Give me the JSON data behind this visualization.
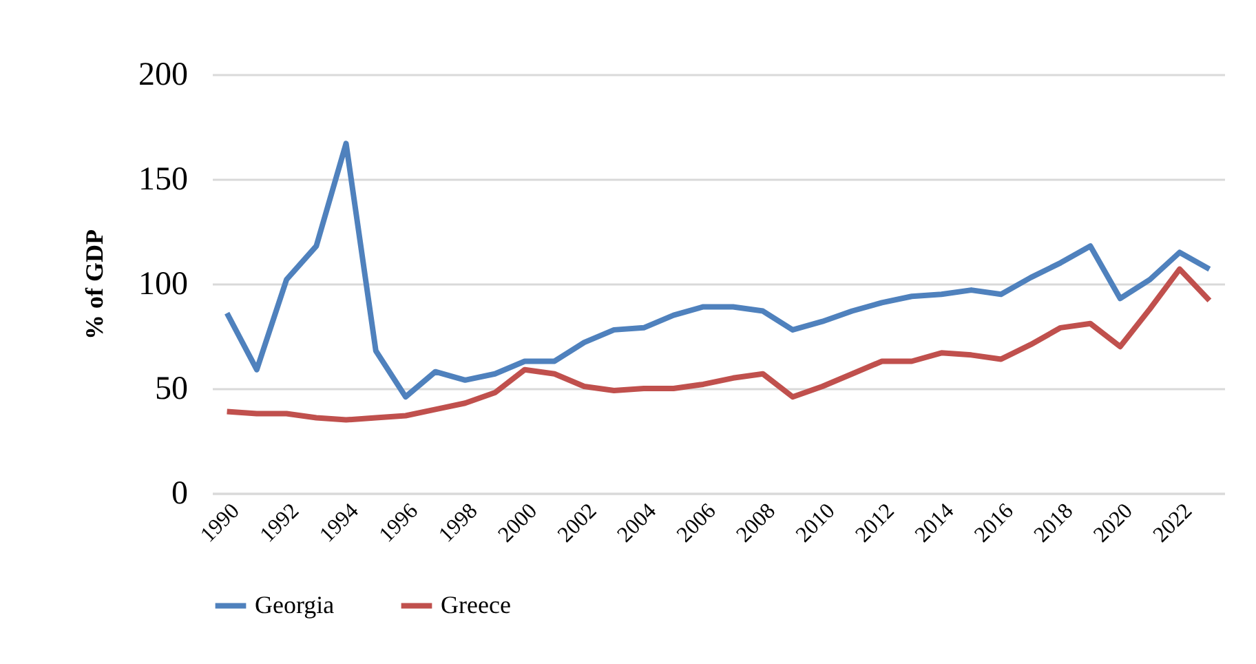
{
  "chart_data": {
    "type": "line",
    "ylabel": "% of GDP",
    "categories": [
      "1990",
      null,
      "1992",
      null,
      "1994",
      null,
      "1996",
      null,
      "1998",
      null,
      "2000",
      null,
      "2002",
      null,
      "2004",
      null,
      "2006",
      null,
      "2008",
      null,
      "2010",
      null,
      "2012",
      null,
      "2014",
      null,
      "2016",
      null,
      "2018",
      null,
      "2020",
      null,
      "2022",
      null
    ],
    "series": [
      {
        "name": "Georgia",
        "color": "#4f81bd",
        "values": [
          86,
          59,
          102,
          118,
          167,
          68,
          46,
          58,
          54,
          57,
          63,
          63,
          72,
          78,
          79,
          85,
          89,
          89,
          87,
          78,
          82,
          87,
          91,
          94,
          95,
          97,
          95,
          103,
          110,
          118,
          93,
          102,
          115,
          107
        ]
      },
      {
        "name": "Greece",
        "color": "#c0504d",
        "values": [
          39,
          38,
          38,
          36,
          35,
          36,
          37,
          40,
          43,
          48,
          59,
          57,
          51,
          49,
          50,
          50,
          52,
          55,
          57,
          46,
          51,
          57,
          63,
          63,
          67,
          66,
          64,
          71,
          79,
          81,
          70,
          88,
          107,
          92
        ]
      }
    ],
    "ylim": [
      0,
      200
    ],
    "yticks": [
      0,
      50,
      100,
      150,
      200
    ],
    "grid": "y",
    "legend": "bottom",
    "line_style": "solid",
    "marker": "none"
  }
}
